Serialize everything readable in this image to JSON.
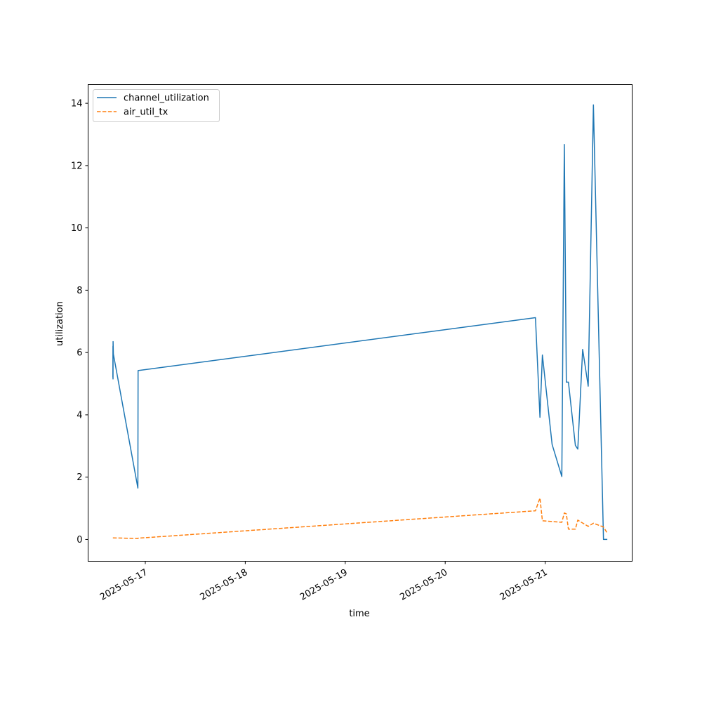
{
  "chart_data": {
    "type": "line",
    "title": "",
    "xlabel": "time",
    "ylabel": "utilization",
    "x_tick_labels": [
      "2025-05-17",
      "2025-05-18",
      "2025-05-19",
      "2025-05-20",
      "2025-05-21"
    ],
    "y_tick_labels": [
      "0",
      "2",
      "4",
      "6",
      "8",
      "10",
      "12",
      "14"
    ],
    "xlim": [
      "2025-05-16 10:16",
      "2025-05-21 20:53"
    ],
    "ylim": [
      -0.7,
      14.6
    ],
    "x_ticks": [
      "2025-05-17 00:00",
      "2025-05-18 00:00",
      "2025-05-19 00:00",
      "2025-05-20 00:00",
      "2025-05-21 00:00"
    ],
    "y_ticks": [
      0,
      2,
      4,
      6,
      8,
      10,
      12,
      14
    ],
    "grid": false,
    "legend_position": "top-left",
    "series": [
      {
        "name": "channel_utilization",
        "color": "#1f77b4",
        "style": "solid",
        "points": [
          [
            "2025-05-16 16:13",
            5.2
          ],
          [
            "2025-05-16 16:14",
            6.2
          ],
          [
            "2025-05-16 16:15",
            5.15
          ],
          [
            "2025-05-16 16:16",
            6.35
          ],
          [
            "2025-05-16 16:20",
            5.95
          ],
          [
            "2025-05-16 22:13",
            1.65
          ],
          [
            "2025-05-16 22:16",
            5.42
          ],
          [
            "2025-05-20 21:40",
            7.12
          ],
          [
            "2025-05-20 22:45",
            3.92
          ],
          [
            "2025-05-20 23:20",
            5.92
          ],
          [
            "2025-05-21 01:40",
            3.05
          ],
          [
            "2025-05-21 04:00",
            2.02
          ],
          [
            "2025-05-21 04:36",
            12.68
          ],
          [
            "2025-05-21 05:05",
            5.05
          ],
          [
            "2025-05-21 05:35",
            5.05
          ],
          [
            "2025-05-21 07:15",
            3.02
          ],
          [
            "2025-05-21 07:50",
            2.9
          ],
          [
            "2025-05-21 09:00",
            6.1
          ],
          [
            "2025-05-21 10:20",
            4.92
          ],
          [
            "2025-05-21 11:35",
            13.95
          ],
          [
            "2025-05-21 14:00",
            0.0
          ],
          [
            "2025-05-21 14:55",
            0.0
          ]
        ]
      },
      {
        "name": "air_util_tx",
        "color": "#ff7f0e",
        "style": "dashed",
        "points": [
          [
            "2025-05-16 16:13",
            0.05
          ],
          [
            "2025-05-16 22:13",
            0.03
          ],
          [
            "2025-05-16 22:16",
            0.04
          ],
          [
            "2025-05-20 21:40",
            0.92
          ],
          [
            "2025-05-20 22:45",
            1.33
          ],
          [
            "2025-05-20 23:20",
            0.6
          ],
          [
            "2025-05-21 04:00",
            0.55
          ],
          [
            "2025-05-21 04:36",
            0.85
          ],
          [
            "2025-05-21 05:05",
            0.82
          ],
          [
            "2025-05-21 05:35",
            0.33
          ],
          [
            "2025-05-21 07:15",
            0.33
          ],
          [
            "2025-05-21 07:50",
            0.62
          ],
          [
            "2025-05-21 10:20",
            0.42
          ],
          [
            "2025-05-21 11:35",
            0.52
          ],
          [
            "2025-05-21 14:00",
            0.4
          ],
          [
            "2025-05-21 14:55",
            0.2
          ]
        ]
      }
    ]
  }
}
